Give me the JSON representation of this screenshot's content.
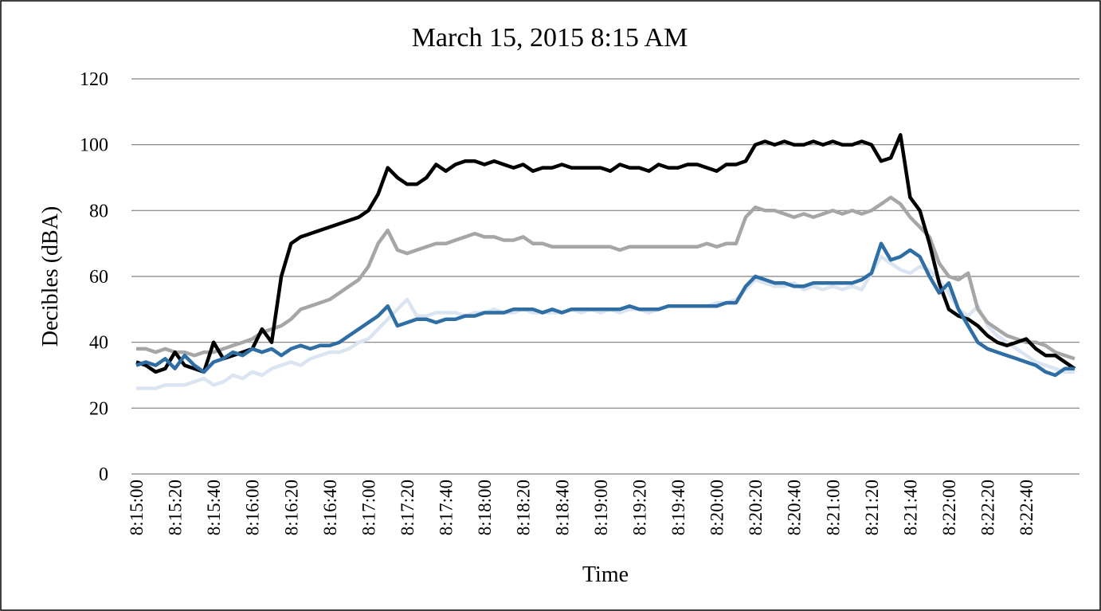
{
  "chart_data": {
    "type": "line",
    "title": "March  15, 2015 8:15 AM",
    "x_label": "Time",
    "y_label": "Decibles (dBA)",
    "categories": [
      "8:15:00",
      null,
      null,
      null,
      "8:15:20",
      null,
      null,
      null,
      "8:15:40",
      null,
      null,
      null,
      "8:16:00",
      null,
      null,
      null,
      "8:16:20",
      null,
      null,
      null,
      "8:16:40",
      null,
      null,
      null,
      "8:17:00",
      null,
      null,
      null,
      "8:17:20",
      null,
      null,
      null,
      "8:17:40",
      null,
      null,
      null,
      "8:18:00",
      null,
      null,
      null,
      "8:18:20",
      null,
      null,
      null,
      "8:18:40",
      null,
      null,
      null,
      "8:19:00",
      null,
      null,
      null,
      "8:19:20",
      null,
      null,
      null,
      "8:19:40",
      null,
      null,
      null,
      "8:20:00",
      null,
      null,
      null,
      "8:20:20",
      null,
      null,
      null,
      "8:20:40",
      null,
      null,
      null,
      "8:21:00",
      null,
      null,
      null,
      "8:21:20",
      null,
      null,
      null,
      "8:21:40",
      null,
      null,
      null,
      "8:22:00",
      null,
      null,
      null,
      "8:22:20",
      null,
      null,
      null,
      "8:22:40",
      null,
      null,
      null,
      null,
      null
    ],
    "series": [
      {
        "color": "#dbe5f1",
        "values": [
          26,
          26,
          26,
          27,
          27,
          27,
          28,
          29,
          27,
          28,
          30,
          29,
          31,
          30,
          32,
          33,
          34,
          33,
          35,
          36,
          37,
          37,
          38,
          40,
          41,
          44,
          47,
          50,
          53,
          48,
          48,
          49,
          49,
          49,
          48,
          49,
          49,
          50,
          49,
          49,
          50,
          49,
          49,
          49,
          49,
          50,
          49,
          50,
          49,
          50,
          49,
          50,
          50,
          49,
          50,
          51,
          51,
          51,
          51,
          51,
          52,
          52,
          53,
          56,
          59,
          58,
          57,
          57,
          58,
          56,
          57,
          56,
          57,
          56,
          57,
          56,
          61,
          66,
          64,
          62,
          61,
          63,
          62,
          59,
          55,
          50,
          48,
          51,
          45,
          42,
          40,
          38,
          36,
          34,
          33,
          32,
          31,
          31
        ]
      },
      {
        "color": "#a6a6a6",
        "values": [
          38,
          38,
          37,
          38,
          37,
          37,
          36,
          37,
          37,
          38,
          39,
          40,
          41,
          43,
          44,
          45,
          47,
          50,
          51,
          52,
          53,
          55,
          57,
          59,
          63,
          70,
          74,
          68,
          67,
          68,
          69,
          70,
          70,
          71,
          72,
          73,
          72,
          72,
          71,
          71,
          72,
          70,
          70,
          69,
          69,
          69,
          69,
          69,
          69,
          69,
          68,
          69,
          69,
          69,
          69,
          69,
          69,
          69,
          69,
          70,
          69,
          70,
          70,
          78,
          81,
          80,
          80,
          79,
          78,
          79,
          78,
          79,
          80,
          79,
          80,
          79,
          80,
          82,
          84,
          82,
          78,
          75,
          72,
          64,
          60,
          59,
          61,
          50,
          46,
          44,
          42,
          41,
          40,
          40,
          39,
          37,
          36,
          35
        ]
      },
      {
        "color": "#000000",
        "values": [
          34,
          33,
          31,
          32,
          37,
          33,
          32,
          31,
          40,
          35,
          36,
          37,
          38,
          44,
          40,
          60,
          70,
          72,
          73,
          74,
          75,
          76,
          77,
          78,
          80,
          85,
          93,
          90,
          88,
          88,
          90,
          94,
          92,
          94,
          95,
          95,
          94,
          95,
          94,
          93,
          94,
          92,
          93,
          93,
          94,
          93,
          93,
          93,
          93,
          92,
          94,
          93,
          93,
          92,
          94,
          93,
          93,
          94,
          94,
          93,
          92,
          94,
          94,
          95,
          100,
          101,
          100,
          101,
          100,
          100,
          101,
          100,
          101,
          100,
          100,
          101,
          100,
          95,
          96,
          103,
          84,
          80,
          70,
          58,
          50,
          48,
          47,
          45,
          42,
          40,
          39,
          40,
          41,
          38,
          36,
          36,
          34,
          32
        ]
      },
      {
        "color": "#2e6ea4",
        "values": [
          33,
          34,
          33,
          35,
          32,
          36,
          33,
          31,
          34,
          35,
          37,
          36,
          38,
          37,
          38,
          36,
          38,
          39,
          38,
          39,
          39,
          40,
          42,
          44,
          46,
          48,
          51,
          45,
          46,
          47,
          47,
          46,
          47,
          47,
          48,
          48,
          49,
          49,
          49,
          50,
          50,
          50,
          49,
          50,
          49,
          50,
          50,
          50,
          50,
          50,
          50,
          51,
          50,
          50,
          50,
          51,
          51,
          51,
          51,
          51,
          51,
          52,
          52,
          57,
          60,
          59,
          58,
          58,
          57,
          57,
          58,
          58,
          58,
          58,
          58,
          59,
          61,
          70,
          65,
          66,
          68,
          66,
          60,
          55,
          58,
          50,
          45,
          40,
          38,
          37,
          36,
          35,
          34,
          33,
          31,
          30,
          32,
          32
        ]
      }
    ],
    "ylim": [
      0,
      120
    ],
    "yticks": [
      0,
      20,
      40,
      60,
      80,
      100,
      120
    ],
    "grid": true
  }
}
